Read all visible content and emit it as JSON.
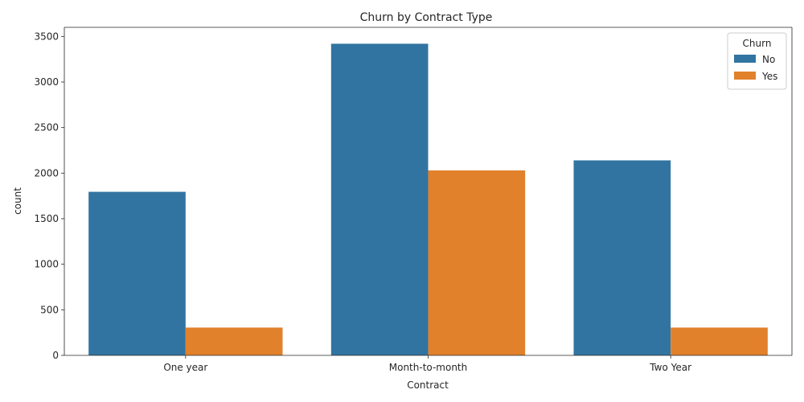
{
  "chart_data": {
    "type": "bar",
    "title": "Churn by Contract Type",
    "xlabel": "Contract",
    "ylabel": "count",
    "categories": [
      "One year",
      "Month-to-month",
      "Two Year"
    ],
    "series": [
      {
        "name": "No",
        "values": [
          1795,
          3420,
          2140
        ],
        "color": "#3274a1"
      },
      {
        "name": "Yes",
        "values": [
          305,
          2030,
          305
        ],
        "color": "#e1812c"
      }
    ],
    "ylim": [
      0,
      3600
    ],
    "yticks": [
      0,
      500,
      1000,
      1500,
      2000,
      2500,
      3000,
      3500
    ],
    "grid": false,
    "legend": {
      "title": "Churn",
      "placement": "top-right"
    }
  }
}
